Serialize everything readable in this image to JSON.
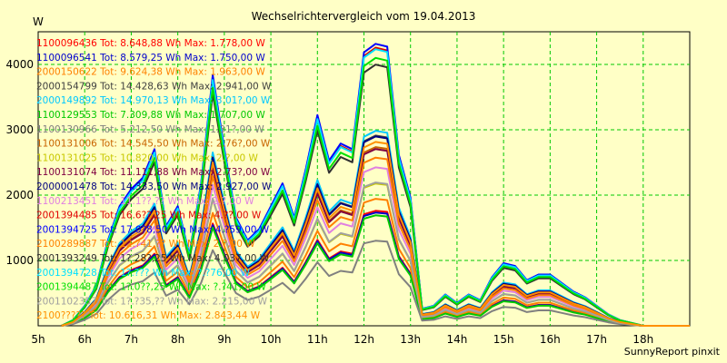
{
  "chart_data": {
    "type": "line",
    "title": "Wechselrichtervergleich vom 19.04.2013",
    "ylabel": "W",
    "xlabel": "",
    "ylim": [
      0,
      4500
    ],
    "xlim": [
      5,
      19
    ],
    "y_ticks": [
      1000,
      2000,
      3000,
      4000
    ],
    "x_ticks": [
      "5h",
      "6h",
      "7h",
      "8h",
      "9h",
      "10h",
      "11h",
      "12h",
      "13h",
      "14h",
      "15h",
      "16h",
      "17h",
      "18h"
    ],
    "grid": true,
    "legend_position": "top-left",
    "x": [
      5.5,
      5.75,
      6.0,
      6.25,
      6.5,
      6.75,
      7.0,
      7.25,
      7.5,
      7.75,
      8.0,
      8.25,
      8.5,
      8.75,
      9.0,
      9.25,
      9.5,
      9.75,
      10.0,
      10.25,
      10.5,
      10.75,
      11.0,
      11.25,
      11.5,
      11.75,
      12.0,
      12.25,
      12.5,
      12.75,
      13.0,
      13.25,
      13.5,
      13.75,
      14.0,
      14.25,
      14.5,
      14.75,
      15.0,
      15.25,
      15.5,
      15.75,
      16.0,
      16.25,
      16.5,
      16.75,
      17.0,
      17.25,
      17.5,
      17.75,
      18.0,
      18.25,
      18.5,
      18.75,
      19.0
    ],
    "profile": [
      0,
      0.02,
      0.07,
      0.14,
      0.3,
      0.42,
      0.48,
      0.52,
      0.62,
      0.35,
      0.42,
      0.25,
      0.5,
      0.88,
      0.62,
      0.38,
      0.3,
      0.34,
      0.42,
      0.5,
      0.38,
      0.55,
      0.74,
      0.58,
      0.64,
      0.62,
      0.96,
      0.99,
      0.98,
      0.6,
      0.45,
      0.06,
      0.07,
      0.11,
      0.08,
      0.11,
      0.09,
      0.17,
      0.22,
      0.21,
      0.16,
      0.18,
      0.18,
      0.15,
      0.12,
      0.1,
      0.07,
      0.04,
      0.02,
      0.01,
      0,
      0,
      0,
      0,
      0
    ],
    "series": [
      {
        "name": "1100096436 Tot: 8.648,88 Wh Max: 1.778,00 W",
        "color": "#ff0000",
        "peak": 1778
      },
      {
        "name": "1100096541 Tot: 8.579,25 Wh Max: 1.750,00 W",
        "color": "#0000cc",
        "peak": 1750
      },
      {
        "name": "2000150622 Tot: 9.624,38 Wh Max: 1.963,00 W",
        "color": "#ff8000",
        "peak": 1963
      },
      {
        "name": "2000154799 Tot: 14.428,63 Wh Max: 2.941,00 W",
        "color": "#404040",
        "peak": 2941
      },
      {
        "name": "2000149892 Tot: 14.970,13 Wh Max: 3.01?,00 W",
        "color": "#00c8ff",
        "peak": 3014
      },
      {
        "name": "1100129553 Tot: 7.309,88 Wh Max: 1.707,00 W",
        "color": "#00c800",
        "peak": 1707
      },
      {
        "name": "1100130966 Tot: 5.212,50 Wh Max: 1.31?,00 W",
        "color": "#808080",
        "peak": 1314
      },
      {
        "name": "1100131006 Tot: 14.545,50 Wh Max: 2.76?,00 W",
        "color": "#c86400",
        "peak": 2763
      },
      {
        "name": "1100131025 Tot: 10.820,00 Wh Max: 2.?,00 W",
        "color": "#c8c800",
        "peak": 2200
      },
      {
        "name": "1100131074 Tot: 11.111,88 Wh Max: 2.73?,00 W",
        "color": "#800040",
        "peak": 2733
      },
      {
        "name": "2000001478 Tot: 14.333,50 Wh Max: 2.927,00 W",
        "color": "#000080",
        "peak": 2927
      },
      {
        "name": "1100213451 Tot: 11.1??,?? Wh Max: 2.?,00 W",
        "color": "#e080e0",
        "peak": 2450
      },
      {
        "name": "2001394485 Tot: 16.6??,25 Wh Max: 4.??,00 W",
        "color": "#e00000",
        "peak": 4300
      },
      {
        "name": "2001394725 Tot: 17.0?8,50 Wh Max: 4.?59,00 W",
        "color": "#0000ff",
        "peak": 4359
      },
      {
        "name": "2100289887 Tot: 12.?41,?? Wh Max: 2.?,00 W",
        "color": "#ff8000",
        "peak": 2600
      },
      {
        "name": "2001393249 Tot: 1?.28?,25 Wh Max: 4.037,00 W",
        "color": "#303030",
        "peak": 4037
      },
      {
        "name": "2001394728 Tot: 1?.??? Wh Max: ?.?76,00 W",
        "color": "#00e0ff",
        "peak": 4276
      },
      {
        "name": "2001394487 Tot: 1?.0??,25 Wh Max: ?.?41,00 W",
        "color": "#00e000",
        "peak": 4141
      },
      {
        "name": "2001102357 Tot: 1?.?35,?? Wh Max: 2.215,00 W",
        "color": "#a0a0a0",
        "peak": 2215
      },
      {
        "name": "2100????? Tot: 10.616,31 Wh Max: 2.843,44 W",
        "color": "#ff9000",
        "peak": 2843
      }
    ]
  },
  "footer": "SunnyReport pinxit"
}
